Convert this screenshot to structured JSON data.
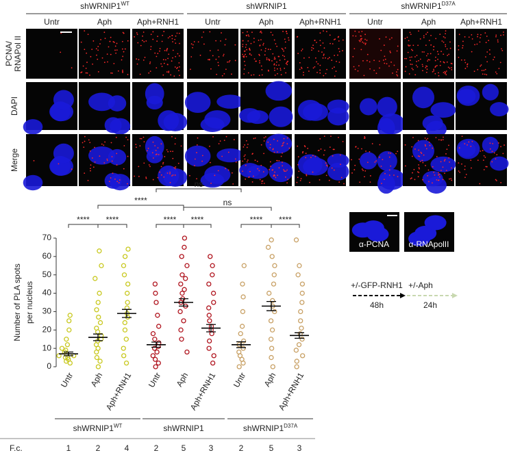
{
  "figure": {
    "groups": [
      {
        "name": "shWRNIP1",
        "sup": "WT"
      },
      {
        "name": "shWRNIP1",
        "sup": ""
      },
      {
        "name": "shWRNIP1",
        "sup": "D37A"
      }
    ],
    "columns": [
      "Untr",
      "Aph",
      "Aph+RNH1",
      "Untr",
      "Aph",
      "Aph+RNH1",
      "Untr",
      "Aph",
      "Aph+RNH1"
    ],
    "rows": [
      [
        "PCNA/",
        "RNAPol II"
      ],
      [
        "DAPI"
      ],
      [
        "Merge"
      ]
    ],
    "insets": [
      "α-PCNA",
      "α-RNApolII"
    ],
    "timeline": {
      "first": "+/-GFP-RNH1",
      "first_time": "48h",
      "second": "+/-Aph",
      "second_time": "24h"
    },
    "fc": {
      "label": "F.c.",
      "values": [
        1,
        2,
        4,
        2,
        5,
        3,
        2,
        5,
        3
      ]
    }
  },
  "chart_data": {
    "type": "dot",
    "ylabel": [
      "Number of PLA spots",
      "per nucleus"
    ],
    "categories": [
      "Untr",
      "Aph",
      "Aph+RNH1",
      "Untr",
      "Aph",
      "Aph+RNH1",
      "Untr",
      "Aph",
      "Aph+RNH1"
    ],
    "colors": [
      "#c8c81e",
      "#c8c81e",
      "#c8c81e",
      "#b0141e",
      "#b0141e",
      "#b0141e",
      "#c8a064",
      "#c8a064",
      "#c8a064"
    ],
    "points": [
      [
        2,
        3,
        4,
        5,
        5,
        6,
        6,
        7,
        8,
        9,
        10,
        12,
        15,
        20,
        25,
        28
      ],
      [
        0,
        3,
        5,
        8,
        10,
        12,
        14,
        15,
        17,
        19,
        21,
        24,
        27,
        31,
        35,
        40,
        48,
        55,
        63
      ],
      [
        2,
        6,
        10,
        15,
        20,
        24,
        27,
        29,
        32,
        35,
        40,
        45,
        50,
        55,
        60,
        64
      ],
      [
        0,
        2,
        4,
        6,
        8,
        10,
        11,
        13,
        15,
        18,
        22,
        28,
        35,
        40,
        45
      ],
      [
        8,
        15,
        20,
        25,
        30,
        33,
        35,
        37,
        40,
        42,
        45,
        48,
        50,
        55,
        60,
        65,
        70
      ],
      [
        2,
        6,
        10,
        14,
        18,
        20,
        22,
        25,
        28,
        32,
        35,
        40,
        45,
        50,
        55,
        60
      ],
      [
        0,
        2,
        4,
        6,
        8,
        10,
        12,
        14,
        18,
        22,
        30,
        38,
        45,
        55
      ],
      [
        0,
        5,
        10,
        15,
        20,
        25,
        30,
        33,
        36,
        40,
        45,
        50,
        55,
        60,
        65,
        69
      ],
      [
        0,
        3,
        6,
        9,
        12,
        15,
        18,
        21,
        25,
        30,
        35,
        40,
        45,
        50,
        55,
        69
      ]
    ],
    "means": [
      7,
      16,
      29,
      12,
      35,
      21,
      12,
      33,
      17
    ],
    "errors": [
      1,
      1.8,
      2.2,
      1.4,
      2,
      2,
      1.6,
      2.5,
      1.5
    ],
    "ylim": [
      0,
      70
    ],
    "yticks": [
      0,
      10,
      20,
      30,
      40,
      50,
      60,
      70
    ],
    "groups": [
      {
        "name": "shWRNIP1",
        "sup": "WT"
      },
      {
        "name": "shWRNIP1",
        "sup": ""
      },
      {
        "name": "shWRNIP1",
        "sup": "D37A"
      }
    ],
    "comparisons": [
      {
        "from": 0,
        "to": 1,
        "label": "****"
      },
      {
        "from": 1,
        "to": 2,
        "label": "****"
      },
      {
        "from": 3,
        "to": 4,
        "label": "****"
      },
      {
        "from": 4,
        "to": 5,
        "label": "****"
      },
      {
        "from": 6,
        "to": 7,
        "label": "****"
      },
      {
        "from": 7,
        "to": 8,
        "label": "****"
      },
      {
        "from": 1,
        "to": 4,
        "label": "****"
      },
      {
        "from": 4,
        "to": 7,
        "label": "ns"
      },
      {
        "from": 3,
        "to": 6,
        "label": "ns"
      }
    ]
  }
}
